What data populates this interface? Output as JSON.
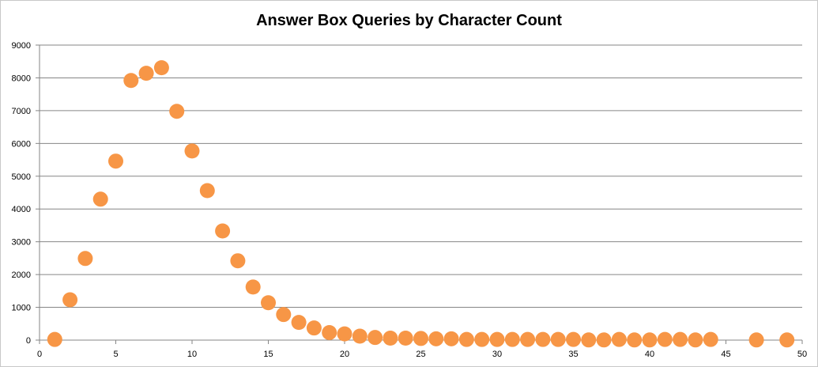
{
  "chart_data": {
    "type": "scatter",
    "title": "Answer Box Queries by Character Count",
    "xlabel": "",
    "ylabel": "",
    "xlim": [
      0,
      50
    ],
    "ylim": [
      0,
      9000
    ],
    "x_ticks": [
      0,
      5,
      10,
      15,
      20,
      25,
      30,
      35,
      40,
      45,
      50
    ],
    "y_ticks": [
      0,
      1000,
      2000,
      3000,
      4000,
      5000,
      6000,
      7000,
      8000,
      9000
    ],
    "grid": "horizontal",
    "legend": "none",
    "marker_color": "#f79646",
    "gridline_color": "#868686",
    "series": [
      {
        "x": [
          1,
          2,
          3,
          4,
          5,
          6,
          7,
          8,
          9,
          10,
          11,
          12,
          13,
          14,
          15,
          16,
          17,
          18,
          19,
          20,
          21,
          22,
          23,
          24,
          25,
          26,
          27,
          28,
          29,
          30,
          31,
          32,
          33,
          34,
          35,
          36,
          37,
          38,
          39,
          40,
          41,
          42,
          43,
          44,
          47,
          49
        ],
        "y": [
          20,
          1230,
          2490,
          4300,
          5460,
          7920,
          8140,
          8310,
          6980,
          5770,
          4560,
          3330,
          2420,
          1620,
          1140,
          780,
          540,
          370,
          230,
          190,
          120,
          80,
          60,
          60,
          50,
          40,
          40,
          20,
          20,
          20,
          20,
          20,
          20,
          20,
          20,
          5,
          5,
          20,
          5,
          5,
          20,
          20,
          5,
          20,
          5,
          5
        ]
      }
    ]
  }
}
